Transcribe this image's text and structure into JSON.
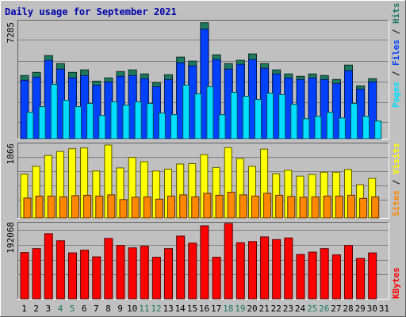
{
  "colors": {
    "frame_bg": "#c0c0c0",
    "plot_bg": "#c0c0c0",
    "title": "#0000aa",
    "hits": "#1e7a5e",
    "files": "#0040ff",
    "pages": "#00dfff",
    "visits": "#ffff00",
    "sites": "#ff8800",
    "kbytes": "#ff0000",
    "weekend_day": "#1e7a5e",
    "weekday_day": "#000000"
  },
  "chart_data": {
    "type": "bar",
    "title": "Daily usage for September 2021",
    "days": [
      "1",
      "2",
      "3",
      "4",
      "5",
      "6",
      "7",
      "8",
      "9",
      "10",
      "11",
      "12",
      "13",
      "14",
      "15",
      "16",
      "17",
      "18",
      "19",
      "20",
      "21",
      "22",
      "23",
      "24",
      "25",
      "26",
      "27",
      "28",
      "29",
      "30",
      "31"
    ],
    "weekend_days": [
      "4",
      "5",
      "11",
      "12",
      "18",
      "19",
      "25",
      "26"
    ],
    "panels": [
      {
        "ymax_label": "7285",
        "ymax": 7285,
        "right_labels": [
          "Pages",
          "Files",
          "Hits"
        ],
        "series": [
          {
            "name": "Hits",
            "values": [
              3950,
              4150,
              5200,
              4700,
              4150,
              4300,
              3600,
              3800,
              4200,
              4300,
              4050,
              3500,
              4000,
              5100,
              4850,
              7250,
              5250,
              4700,
              4900,
              5300,
              4700,
              4300,
              4050,
              3900,
              4050,
              3950,
              3700,
              4600,
              3300,
              3750,
              0
            ]
          },
          {
            "name": "Files",
            "values": [
              3650,
              3850,
              4900,
              4350,
              3800,
              3950,
              3350,
              3550,
              3900,
              3950,
              3750,
              3250,
              3700,
              4750,
              4550,
              6850,
              4950,
              4350,
              4650,
              4950,
              4400,
              4050,
              3800,
              3700,
              3800,
              3700,
              3450,
              4250,
              3100,
              3550,
              0
            ]
          },
          {
            "name": "Pages",
            "values": [
              1650,
              2000,
              3400,
              2400,
              2000,
              2200,
              1450,
              2300,
              2100,
              2300,
              2200,
              1600,
              1500,
              3350,
              2800,
              3250,
              1500,
              2900,
              2650,
              2450,
              2850,
              2750,
              2150,
              1250,
              1400,
              1650,
              1300,
              2200,
              1400,
              1100,
              0
            ]
          }
        ]
      },
      {
        "ymax_label": "1866",
        "ymax": 1866,
        "right_labels": [
          "Sites",
          "Visits"
        ],
        "series": [
          {
            "name": "Visits",
            "values": [
              1120,
              1320,
              1600,
              1700,
              1770,
              1790,
              1200,
              1866,
              1280,
              1550,
              1440,
              1200,
              1250,
              1380,
              1390,
              1620,
              1290,
              1800,
              1520,
              1320,
              1760,
              1130,
              1220,
              1070,
              1110,
              1170,
              1170,
              1240,
              850,
              1010,
              0
            ]
          },
          {
            "name": "Sites",
            "values": [
              510,
              560,
              560,
              540,
              570,
              580,
              560,
              590,
              470,
              530,
              540,
              480,
              560,
              590,
              540,
              630,
              580,
              660,
              590,
              560,
              630,
              580,
              550,
              530,
              540,
              560,
              560,
              580,
              500,
              540,
              0
            ]
          }
        ]
      },
      {
        "ymax_label": "192068",
        "ymax": 192068,
        "right_labels": [
          "KBytes"
        ],
        "series": [
          {
            "name": "KBytes",
            "values": [
              118000,
              128000,
              166000,
              148000,
              117000,
              124000,
              107000,
              154000,
              136000,
              130000,
              134000,
              106000,
              128000,
              160000,
              142000,
              186000,
              106000,
              192068,
              143000,
              146000,
              158000,
              151000,
              155000,
              113000,
              119000,
              128000,
              112000,
              136000,
              103000,
              117000,
              0
            ]
          }
        ]
      }
    ]
  }
}
